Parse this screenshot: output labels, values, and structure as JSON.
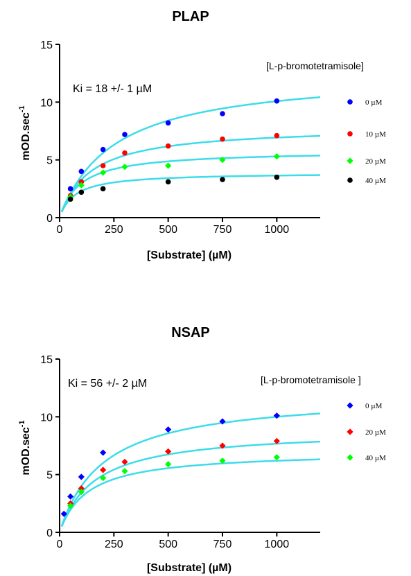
{
  "chart_data": [
    {
      "type": "scatter",
      "title": "PLAP",
      "xlabel": "[Substrate] (µM)",
      "ylabel": "mOD.sec",
      "ylabel_superscript": "-1",
      "xlim": [
        0,
        1200
      ],
      "ylim": [
        0,
        15
      ],
      "xticks": [
        0,
        250,
        500,
        750,
        1000
      ],
      "yticks": [
        0,
        5,
        10,
        15
      ],
      "annotation": "Ki = 18 +/- 1 µM",
      "legend_title": "[L-p-bromotetramisole]",
      "legend_placement": "right",
      "fit_color": "#3cdcea",
      "series": [
        {
          "name": "0 µM",
          "color": "#0000ff",
          "marker": "circle",
          "x": [
            50,
            100,
            200,
            300,
            500,
            750,
            1000
          ],
          "y": [
            2.5,
            4.0,
            5.9,
            7.2,
            8.2,
            9.0,
            10.1
          ],
          "fit": {
            "vmax": 12.6,
            "km": 250
          }
        },
        {
          "name": "10 µM",
          "color": "#ff0000",
          "marker": "circle",
          "x": [
            50,
            100,
            200,
            300,
            500,
            750,
            1000
          ],
          "y": [
            1.9,
            3.1,
            4.5,
            5.6,
            6.2,
            6.8,
            7.1
          ],
          "fit": {
            "vmax": 7.9,
            "km": 140
          }
        },
        {
          "name": "20 µM",
          "color": "#00ff00",
          "marker": "diamond",
          "x": [
            50,
            100,
            200,
            300,
            500,
            750,
            1000
          ],
          "y": [
            1.8,
            2.8,
            3.9,
            4.4,
            4.5,
            5.0,
            5.3
          ],
          "fit": {
            "vmax": 5.8,
            "km": 95
          }
        },
        {
          "name": "40 µM",
          "color": "#000000",
          "marker": "circle",
          "x": [
            50,
            100,
            200,
            500,
            750,
            1000
          ],
          "y": [
            1.6,
            2.2,
            2.5,
            3.1,
            3.3,
            3.5
          ],
          "fit": {
            "vmax": 3.9,
            "km": 70
          }
        }
      ]
    },
    {
      "type": "scatter",
      "title": "NSAP",
      "xlabel": "[Substrate] (µM)",
      "ylabel": "mOD.sec",
      "ylabel_superscript": "-1",
      "xlim": [
        0,
        1200
      ],
      "ylim": [
        0,
        15
      ],
      "xticks": [
        0,
        250,
        500,
        750,
        1000
      ],
      "yticks": [
        0,
        5,
        10,
        15
      ],
      "annotation": "Ki = 56 +/- 2 µM",
      "legend_title": "[L-p-bromotetramisole ]",
      "legend_placement": "right",
      "fit_color": "#3cdcea",
      "series": [
        {
          "name": "0 µM",
          "color": "#0000ff",
          "marker": "diamond",
          "x": [
            20,
            50,
            100,
            200,
            500,
            750,
            1000
          ],
          "y": [
            1.6,
            3.1,
            4.8,
            6.9,
            8.9,
            9.6,
            10.1
          ],
          "fit": {
            "vmax": 12.0,
            "km": 200
          }
        },
        {
          "name": "20 µM",
          "color": "#ff0000",
          "marker": "diamond",
          "x": [
            50,
            100,
            200,
            300,
            500,
            750,
            1000
          ],
          "y": [
            2.5,
            3.8,
            5.4,
            6.1,
            7.0,
            7.5,
            7.9
          ],
          "fit": {
            "vmax": 8.9,
            "km": 160
          }
        },
        {
          "name": "40 µM",
          "color": "#00ff00",
          "marker": "diamond",
          "x": [
            50,
            100,
            200,
            300,
            500,
            750,
            1000
          ],
          "y": [
            2.3,
            3.5,
            4.7,
            5.3,
            5.9,
            6.2,
            6.5
          ],
          "fit": {
            "vmax": 7.0,
            "km": 130
          }
        }
      ]
    }
  ]
}
